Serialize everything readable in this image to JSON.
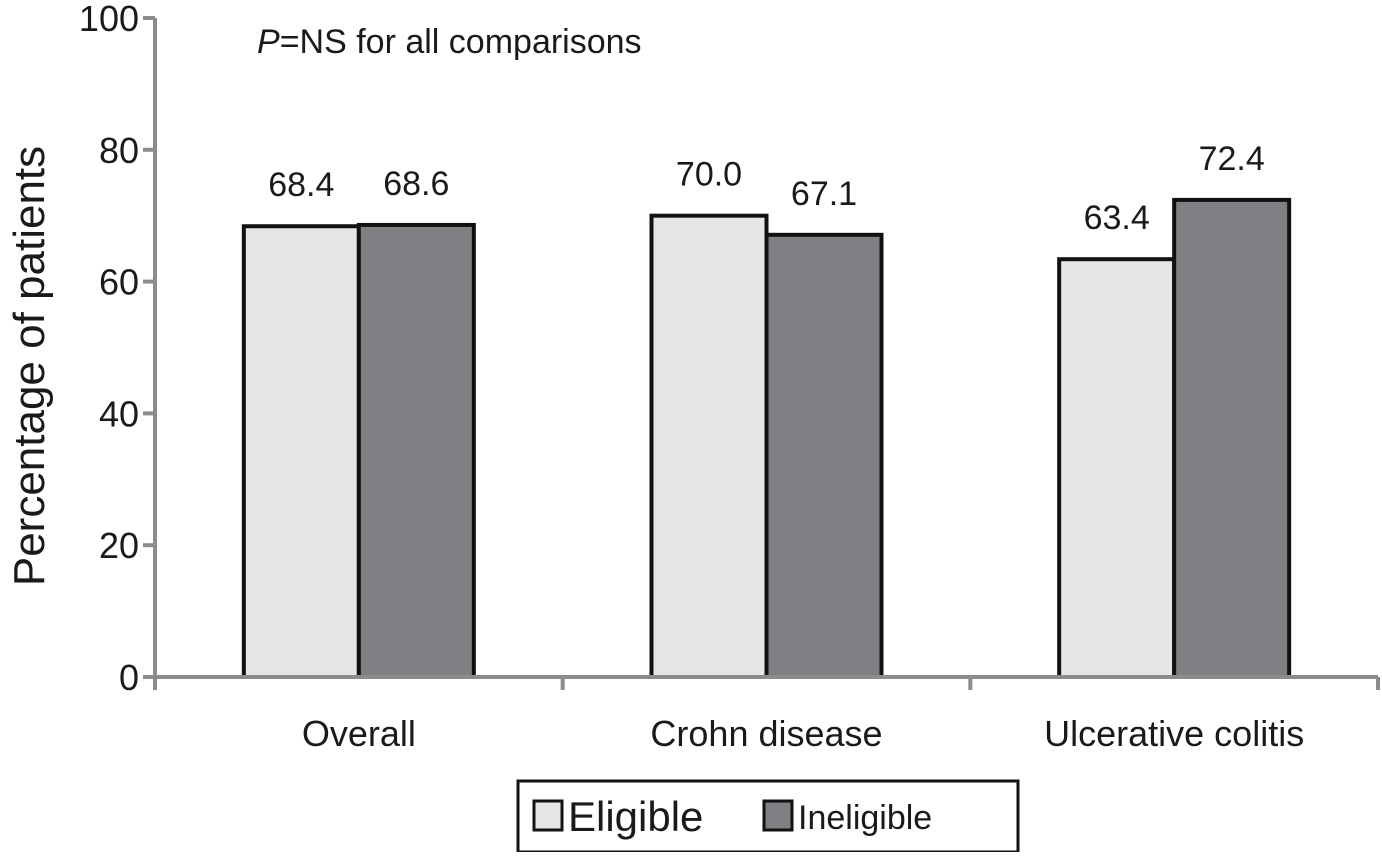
{
  "chart_data": {
    "type": "bar",
    "title": "",
    "annotation": {
      "italic_part": "P",
      "rest": "=NS for all comparisons"
    },
    "xlabel": "",
    "ylabel": "Percentage of patients",
    "ylim": [
      0,
      100
    ],
    "yticks": [
      0,
      20,
      40,
      60,
      80,
      100
    ],
    "categories": [
      "Overall",
      "Crohn disease",
      "Ulcerative colitis"
    ],
    "series": [
      {
        "name": "Eligible",
        "values": [
          68.4,
          70.0,
          63.4
        ],
        "labels": [
          "68.4",
          "70.0",
          "63.4"
        ],
        "color": "#e6e6e6"
      },
      {
        "name": "Ineligible",
        "values": [
          68.6,
          67.1,
          72.4
        ],
        "labels": [
          "68.6",
          "67.1",
          "72.4"
        ],
        "color": "#7f8084"
      }
    ],
    "grid": false,
    "legend": "bottom-center",
    "colors": {
      "axis": "#8c8c8c",
      "bar_outline": "#111111",
      "text": "#1a1a1a"
    }
  }
}
